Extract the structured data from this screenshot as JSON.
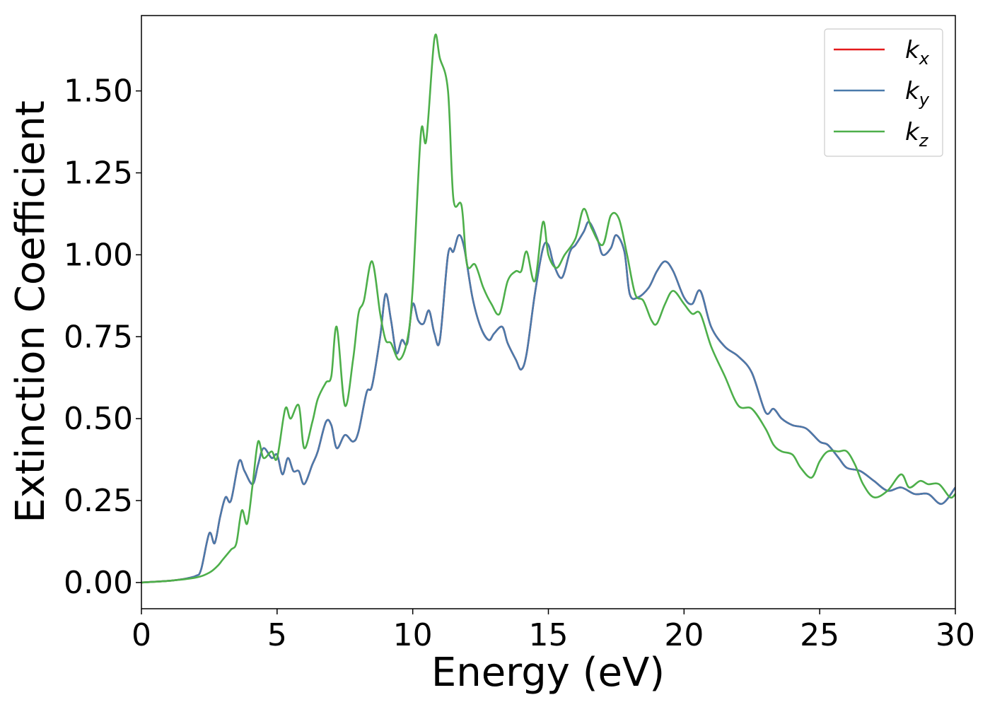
{
  "chart_data": {
    "type": "line",
    "title": "",
    "xlabel": "Energy (eV)",
    "ylabel": "Extinction Coefficient",
    "xlim": [
      0,
      30
    ],
    "ylim": [
      -0.08,
      1.73
    ],
    "xticks": [
      0,
      5,
      10,
      15,
      20,
      25,
      30
    ],
    "xtick_labels": [
      "0",
      "5",
      "10",
      "15",
      "20",
      "25",
      "30"
    ],
    "yticks": [
      0.0,
      0.25,
      0.5,
      0.75,
      1.0,
      1.25,
      1.5
    ],
    "ytick_labels": [
      "0.00",
      "0.25",
      "0.50",
      "0.75",
      "1.00",
      "1.25",
      "1.50"
    ],
    "grid": false,
    "legend_position": "top-right",
    "series": [
      {
        "name": "k_x",
        "label_main": "k",
        "label_sub": "x",
        "color": "#e41a1c",
        "x": [
          0,
          1,
          1.5,
          2,
          2.2,
          2.5,
          2.7,
          2.9,
          3.1,
          3.3,
          3.6,
          3.8,
          4.1,
          4.3,
          4.5,
          4.8,
          5.0,
          5.2,
          5.4,
          5.6,
          5.8,
          6.0,
          6.3,
          6.5,
          6.8,
          7.0,
          7.2,
          7.5,
          7.8,
          8.0,
          8.3,
          8.5,
          8.8,
          9.0,
          9.2,
          9.4,
          9.6,
          9.8,
          10.0,
          10.2,
          10.4,
          10.6,
          10.8,
          11.0,
          11.3,
          11.5,
          11.7,
          11.9,
          12.2,
          12.5,
          12.8,
          13.0,
          13.3,
          13.5,
          13.8,
          14.0,
          14.2,
          14.5,
          14.8,
          15.0,
          15.2,
          15.5,
          15.8,
          16.0,
          16.3,
          16.5,
          16.8,
          17.0,
          17.3,
          17.5,
          17.8,
          18.0,
          18.3,
          18.7,
          19.0,
          19.3,
          19.6,
          20.0,
          20.3,
          20.6,
          21.0,
          21.5,
          22.0,
          22.5,
          23.0,
          23.3,
          23.6,
          24.0,
          24.5,
          25.0,
          25.3,
          25.7,
          26.0,
          26.5,
          27.0,
          27.5,
          28.0,
          28.5,
          29.0,
          29.5,
          30.0
        ],
        "values": [
          0.0,
          0.005,
          0.01,
          0.02,
          0.04,
          0.15,
          0.12,
          0.2,
          0.26,
          0.25,
          0.37,
          0.34,
          0.3,
          0.36,
          0.41,
          0.38,
          0.39,
          0.33,
          0.38,
          0.34,
          0.34,
          0.3,
          0.36,
          0.4,
          0.49,
          0.48,
          0.41,
          0.45,
          0.43,
          0.46,
          0.58,
          0.6,
          0.75,
          0.88,
          0.8,
          0.7,
          0.74,
          0.73,
          0.85,
          0.8,
          0.79,
          0.83,
          0.76,
          0.74,
          1.0,
          1.01,
          1.06,
          1.02,
          0.87,
          0.78,
          0.74,
          0.76,
          0.78,
          0.73,
          0.68,
          0.65,
          0.7,
          0.88,
          1.02,
          1.03,
          0.97,
          0.93,
          1.01,
          1.03,
          1.07,
          1.1,
          1.05,
          1.0,
          1.02,
          1.06,
          1.01,
          0.88,
          0.87,
          0.9,
          0.95,
          0.98,
          0.95,
          0.87,
          0.85,
          0.89,
          0.78,
          0.72,
          0.69,
          0.64,
          0.52,
          0.53,
          0.5,
          0.48,
          0.47,
          0.43,
          0.42,
          0.38,
          0.35,
          0.34,
          0.31,
          0.28,
          0.29,
          0.27,
          0.27,
          0.24,
          0.29
        ]
      },
      {
        "name": "k_y",
        "label_main": "k",
        "label_sub": "y",
        "color": "#4a7aab",
        "x": [
          0,
          1,
          1.5,
          2,
          2.2,
          2.5,
          2.7,
          2.9,
          3.1,
          3.3,
          3.6,
          3.8,
          4.1,
          4.3,
          4.5,
          4.8,
          5.0,
          5.2,
          5.4,
          5.6,
          5.8,
          6.0,
          6.3,
          6.5,
          6.8,
          7.0,
          7.2,
          7.5,
          7.8,
          8.0,
          8.3,
          8.5,
          8.8,
          9.0,
          9.2,
          9.4,
          9.6,
          9.8,
          10.0,
          10.2,
          10.4,
          10.6,
          10.8,
          11.0,
          11.3,
          11.5,
          11.7,
          11.9,
          12.2,
          12.5,
          12.8,
          13.0,
          13.3,
          13.5,
          13.8,
          14.0,
          14.2,
          14.5,
          14.8,
          15.0,
          15.2,
          15.5,
          15.8,
          16.0,
          16.3,
          16.5,
          16.8,
          17.0,
          17.3,
          17.5,
          17.8,
          18.0,
          18.3,
          18.7,
          19.0,
          19.3,
          19.6,
          20.0,
          20.3,
          20.6,
          21.0,
          21.5,
          22.0,
          22.5,
          23.0,
          23.3,
          23.6,
          24.0,
          24.5,
          25.0,
          25.3,
          25.7,
          26.0,
          26.5,
          27.0,
          27.5,
          28.0,
          28.5,
          29.0,
          29.5,
          30.0
        ],
        "values": [
          0.0,
          0.005,
          0.01,
          0.02,
          0.04,
          0.15,
          0.12,
          0.2,
          0.26,
          0.25,
          0.37,
          0.34,
          0.3,
          0.36,
          0.41,
          0.38,
          0.39,
          0.33,
          0.38,
          0.34,
          0.34,
          0.3,
          0.36,
          0.4,
          0.49,
          0.48,
          0.41,
          0.45,
          0.43,
          0.46,
          0.58,
          0.6,
          0.75,
          0.88,
          0.8,
          0.7,
          0.74,
          0.73,
          0.85,
          0.8,
          0.79,
          0.83,
          0.76,
          0.74,
          1.0,
          1.01,
          1.06,
          1.02,
          0.87,
          0.78,
          0.74,
          0.76,
          0.78,
          0.73,
          0.68,
          0.65,
          0.7,
          0.88,
          1.02,
          1.03,
          0.97,
          0.93,
          1.01,
          1.03,
          1.07,
          1.1,
          1.05,
          1.0,
          1.02,
          1.06,
          1.01,
          0.88,
          0.87,
          0.9,
          0.95,
          0.98,
          0.95,
          0.87,
          0.85,
          0.89,
          0.78,
          0.72,
          0.69,
          0.64,
          0.52,
          0.53,
          0.5,
          0.48,
          0.47,
          0.43,
          0.42,
          0.38,
          0.35,
          0.34,
          0.31,
          0.28,
          0.29,
          0.27,
          0.27,
          0.24,
          0.29
        ]
      },
      {
        "name": "k_z",
        "label_main": "k",
        "label_sub": "z",
        "color": "#4daf4a",
        "x": [
          0,
          1,
          2,
          2.5,
          2.8,
          3.0,
          3.3,
          3.5,
          3.7,
          3.9,
          4.1,
          4.3,
          4.5,
          4.8,
          5.0,
          5.3,
          5.5,
          5.8,
          6.0,
          6.3,
          6.5,
          6.8,
          7.0,
          7.2,
          7.5,
          7.8,
          8.0,
          8.2,
          8.5,
          8.8,
          9.0,
          9.2,
          9.5,
          9.8,
          10.0,
          10.3,
          10.5,
          10.8,
          11.0,
          11.3,
          11.5,
          11.8,
          12.0,
          12.3,
          12.6,
          12.9,
          13.2,
          13.5,
          13.8,
          14.0,
          14.2,
          14.5,
          14.8,
          15.0,
          15.3,
          15.6,
          16.0,
          16.3,
          16.6,
          17.0,
          17.3,
          17.6,
          17.9,
          18.2,
          18.5,
          18.8,
          19.0,
          19.3,
          19.6,
          20.0,
          20.3,
          20.6,
          21.0,
          21.5,
          22.0,
          22.5,
          23.0,
          23.3,
          23.6,
          24.0,
          24.3,
          24.7,
          25.0,
          25.3,
          25.7,
          26.0,
          26.3,
          26.6,
          27.0,
          27.5,
          28.0,
          28.3,
          28.7,
          29.0,
          29.4,
          29.8,
          30.0
        ],
        "values": [
          0.0,
          0.005,
          0.015,
          0.03,
          0.05,
          0.07,
          0.1,
          0.12,
          0.22,
          0.18,
          0.3,
          0.43,
          0.38,
          0.4,
          0.38,
          0.53,
          0.5,
          0.54,
          0.41,
          0.49,
          0.56,
          0.61,
          0.63,
          0.78,
          0.54,
          0.68,
          0.82,
          0.86,
          0.98,
          0.82,
          0.74,
          0.73,
          0.68,
          0.74,
          0.9,
          1.37,
          1.35,
          1.66,
          1.6,
          1.5,
          1.17,
          1.15,
          0.97,
          0.97,
          0.9,
          0.85,
          0.82,
          0.92,
          0.95,
          0.95,
          1.01,
          0.92,
          1.1,
          1.0,
          0.96,
          1.0,
          1.05,
          1.14,
          1.08,
          1.03,
          1.12,
          1.11,
          1.0,
          0.88,
          0.86,
          0.8,
          0.79,
          0.85,
          0.89,
          0.85,
          0.82,
          0.82,
          0.72,
          0.63,
          0.54,
          0.53,
          0.47,
          0.42,
          0.4,
          0.39,
          0.35,
          0.32,
          0.37,
          0.4,
          0.4,
          0.4,
          0.36,
          0.3,
          0.26,
          0.28,
          0.33,
          0.29,
          0.31,
          0.3,
          0.3,
          0.26,
          0.27
        ]
      }
    ]
  }
}
